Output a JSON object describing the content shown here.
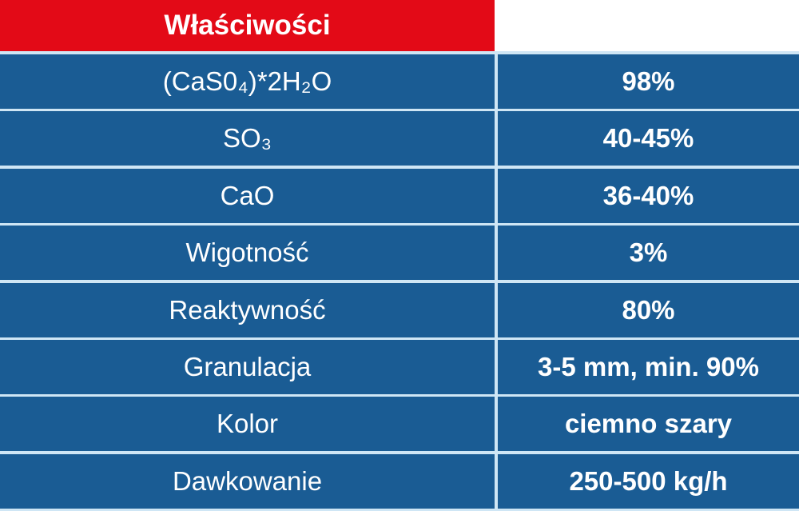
{
  "header": {
    "title": "Właściwości"
  },
  "rows": [
    {
      "property": "(CaS0₄)*2H₂O",
      "value": "98%"
    },
    {
      "property": "SO₃",
      "value": "40-45%"
    },
    {
      "property": "CaO",
      "value": "36-40%"
    },
    {
      "property": "Wigotność",
      "value": "3%"
    },
    {
      "property": "Reaktywność",
      "value": "80%"
    },
    {
      "property": "Granulacja",
      "value": "3-5 mm, min. 90%"
    },
    {
      "property": "Kolor",
      "value": "ciemno szary"
    },
    {
      "property": "Dawkowanie",
      "value": "250-500 kg/h"
    }
  ],
  "colors": {
    "header": "#e30a17",
    "row": "#1a5c94",
    "border": "#cfe6f5"
  }
}
